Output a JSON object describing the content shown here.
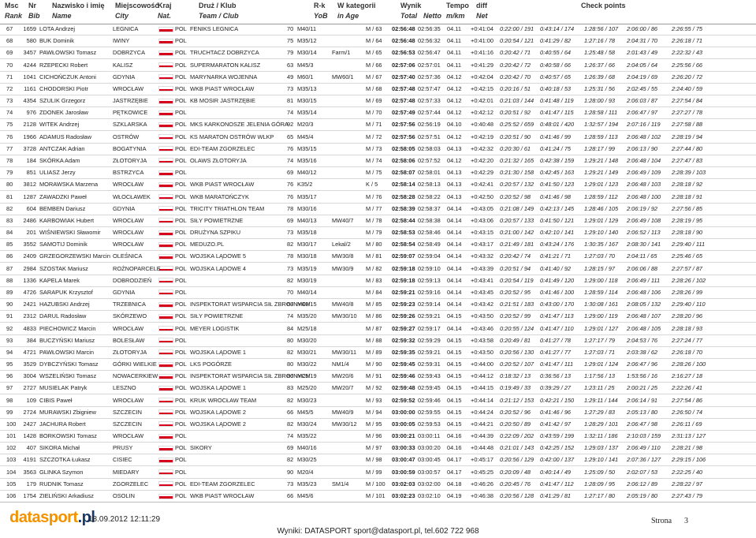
{
  "header": [
    {
      "top": "Msc",
      "bottom": "Rank"
    },
    {
      "top": "Nr",
      "bottom": "Bib"
    },
    {
      "top": "Nazwisko i imię",
      "bottom": "Name"
    },
    {
      "top": "Miejscowość",
      "bottom": "City"
    },
    {
      "top": "Kraj",
      "bottom": "Nat."
    },
    {
      "top": "Druż / Klub",
      "bottom": "Team / Club"
    },
    {
      "top": "R-k",
      "bottom": "YoB"
    },
    {
      "top": "W kategorii",
      "bottom": "in Age"
    },
    {
      "top": "Wynik",
      "bottom": "Total"
    },
    {
      "bottom": "Netto"
    },
    {
      "top": "Tempo",
      "bottom": "m/km"
    },
    {
      "top": "diff",
      "bottom": "Net"
    },
    {
      "top": "Check points"
    }
  ],
  "rows": [
    [
      "67",
      "1659",
      "LOTA Andrzej",
      "LEGNICA",
      "POL",
      "FENIKS LEGNICA",
      "70",
      "M40/11",
      null,
      "M / 63",
      "02:56:48",
      "02:56:35",
      "04.11",
      "+0:41:04",
      "0:22:00 / 191",
      "0:43:14 / 174",
      "1:28:56 / 107",
      "2:06:00 / 86",
      "2:26:55 / 75"
    ],
    [
      "68",
      "580",
      "BUK Dominik",
      "IWINY",
      "POL",
      null,
      "75",
      "M35/12",
      null,
      "M / 64",
      "02:56:48",
      "02:56:32",
      "04.11",
      "+0:41:00",
      "0:20:54 / 121",
      "0:41:29 / 82",
      "1:27:16 / 78",
      "2:04:31 / 70",
      "2:26:18 / 71"
    ],
    [
      "69",
      "3457",
      "PAWŁOWSKI Tomasz",
      "DOBRZYCA",
      "POL",
      "TRUCHTACZ DOBRZYCA",
      "79",
      "M30/14",
      "Farm/1",
      "M / 65",
      "02:56:53",
      "02:56:47",
      "04.11",
      "+0:41:16",
      "0:20:42 / 71",
      "0:40:55 / 64",
      "1:25:48 / 58",
      "2:01:43 / 49",
      "2:22:32 / 43"
    ],
    [
      "70",
      "4244",
      "RZEPECKI Robert",
      "KALISZ",
      "POL",
      "SUPERMARATON KALISZ",
      "63",
      "M45/3",
      null,
      "M / 66",
      "02:57:06",
      "02:57:01",
      "04.11",
      "+0:41:29",
      "0:20:42 / 72",
      "0:40:58 / 66",
      "1:26:37 / 66",
      "2:04:05 / 64",
      "2:25:56 / 66"
    ],
    [
      "71",
      "1041",
      "CICHOŃCZUK Antoni",
      "GDYNIA",
      "POL",
      "MARYNARKA WOJENNA",
      "49",
      "M60/1",
      "MW60/1",
      "M / 67",
      "02:57:40",
      "02:57:36",
      "04.12",
      "+0:42:04",
      "0:20:42 / 70",
      "0:40:57 / 65",
      "1:26:39 / 68",
      "2:04:19 / 69",
      "2:26:20 / 72"
    ],
    [
      "72",
      "1161",
      "CHODORSKI Piotr",
      "WROCŁAW",
      "POL",
      "WKB PIAST WROCŁAW",
      "73",
      "M35/13",
      null,
      "M / 68",
      "02:57:48",
      "02:57:47",
      "04.12",
      "+0:42:15",
      "0:20:16 / 51",
      "0:40:18 / 53",
      "1:25:31 / 56",
      "2:02:45 / 55",
      "2:24:40 / 59"
    ],
    [
      "73",
      "4354",
      "SZULIK Grzegorz",
      "JASTRZĘBIE",
      "POL",
      "KB MOSIR JASTRZĘBIE",
      "81",
      "M30/15",
      null,
      "M / 69",
      "02:57:48",
      "02:57:33",
      "04.12",
      "+0:42:01",
      "0:21:03 / 144",
      "0:41:48 / 119",
      "1:28:00 / 93",
      "2:06:03 / 87",
      "2:27:54 / 84"
    ],
    [
      "74",
      "976",
      "ZDONEK Jarosław",
      "PĘTKOWICE",
      "POL",
      null,
      "74",
      "M35/14",
      null,
      "M / 70",
      "02:57:49",
      "02:57:44",
      "04.12",
      "+0:42:12",
      "0:20:51 / 92",
      "0:41:47 / 115",
      "1:28:58 / 111",
      "2:06:47 / 97",
      "2:27:27 / 78"
    ],
    [
      "75",
      "2128",
      "WITEK Andrzej",
      "SZKLARSKA",
      "POL",
      "MKS KARKONOSZE JELENIA GÓRA",
      "92",
      "M20/3",
      null,
      "M / 71",
      "02:57:56",
      "02:56:19",
      "04.10",
      "+0:40:48",
      "0:25:52 / 659",
      "0:48:01 / 420",
      "1:32:57 / 194",
      "2:07:16 / 119",
      "2:27:58 / 88"
    ],
    [
      "76",
      "1966",
      "ADAMUS Radosław",
      "OSTRÓW",
      "POL",
      "KS MARATON OSTRÓW WLKP",
      "65",
      "M45/4",
      null,
      "M / 72",
      "02:57:56",
      "02:57:51",
      "04.12",
      "+0:42:19",
      "0:20:51 / 90",
      "0:41:46 / 99",
      "1:28:59 / 113",
      "2:06:48 / 102",
      "2:28:19 / 94"
    ],
    [
      "77",
      "3728",
      "ANTCZAK Adrian",
      "BOGATYNIA",
      "POL",
      "EDI-TEAM ZGORZELEC",
      "76",
      "M35/15",
      null,
      "M / 73",
      "02:58:05",
      "02:58:03",
      "04.13",
      "+0:42:32",
      "0:20:30 / 61",
      "0:41:24 / 75",
      "1:28:17 / 99",
      "2:06:13 / 90",
      "2:27:44 / 80"
    ],
    [
      "78",
      "184",
      "SKÓRKA Adam",
      "ZŁOTORYJA",
      "POL",
      "OLAWS ZŁOTORYJA",
      "74",
      "M35/16",
      null,
      "M / 74",
      "02:58:06",
      "02:57:52",
      "04.12",
      "+0:42:20",
      "0:21:32 / 165",
      "0:42:38 / 159",
      "1:29:21 / 148",
      "2:06:48 / 104",
      "2:27:47 / 83"
    ],
    [
      "79",
      "851",
      "ULIASZ Jerzy",
      "BSTRZYCA",
      "POL",
      null,
      "69",
      "M40/12",
      null,
      "M / 75",
      "02:58:07",
      "02:58:01",
      "04.13",
      "+0:42:29",
      "0:21:30 / 158",
      "0:42:45 / 163",
      "1:29:21 / 149",
      "2:06:49 / 109",
      "2:28:39 / 103"
    ],
    [
      "80",
      "3812",
      "MORAWSKA Marzena",
      "WROCŁAW",
      "POL",
      "WKB PIAST WROCŁAW",
      "76",
      "K35/2",
      null,
      "K / 5",
      "02:58:14",
      "02:58:13",
      "04.13",
      "+0:42:41",
      "0:20:57 / 132",
      "0:41:50 / 123",
      "1:29:01 / 123",
      "2:06:48 / 103",
      "2:28:18 / 92"
    ],
    [
      "81",
      "1287",
      "ZAWADZKI Paweł",
      "WŁOCŁAWEK",
      "POL",
      "WKB MARATOŃCZYK",
      "76",
      "M35/17",
      null,
      "M / 76",
      "02:58:28",
      "02:58:22",
      "04.13",
      "+0:42:50",
      "0:20:52 / 98",
      "0:41:46 / 98",
      "1:28:59 / 112",
      "2:06:48 / 100",
      "2:28:18 / 91"
    ],
    [
      "82",
      "604",
      "BEMBEN Dariusz",
      "GDYNIA",
      "POL",
      "TRICITY TRIATHLON TEAM",
      "78",
      "M30/16",
      null,
      "M / 77",
      "02:58:39",
      "02:58:37",
      "04.14",
      "+0:43:05",
      "0:21:08 / 149",
      "0:42:13 / 145",
      "1:28:46 / 105",
      "2:06:19 / 92",
      "2:27:56 / 85"
    ],
    [
      "83",
      "2486",
      "KARBOWIAK Hubert",
      "WROCŁAW",
      "POL",
      "SIŁY POWIETRZNE",
      "69",
      "M40/13",
      "MW40/7",
      "M / 78",
      "02:58:44",
      "02:58:38",
      "04.14",
      "+0:43:06",
      "0:20:57 / 133",
      "0:41:50 / 121",
      "1:29:01 / 129",
      "2:06:49 / 108",
      "2:28:19 / 95"
    ],
    [
      "84",
      "201",
      "WIŚNIEWSKI Sławomir",
      "WROCŁAW",
      "POL",
      "DRUŻYNA SZPIKU",
      "73",
      "M35/18",
      null,
      "M / 79",
      "02:58:53",
      "02:58:46",
      "04.14",
      "+0:43:15",
      "0:21:00 / 142",
      "0:42:10 / 141",
      "1:29:10 / 140",
      "2:06:52 / 113",
      "2:28:18 / 90"
    ],
    [
      "85",
      "3552",
      "SAMOTIJ Dominik",
      "WROCŁAW",
      "POL",
      "MEDUZO.PL",
      "82",
      "M30/17",
      "Lekal/2",
      "M / 80",
      "02:58:54",
      "02:58:49",
      "04.14",
      "+0:43:17",
      "0:21:49 / 181",
      "0:43:24 / 176",
      "1:30:35 / 167",
      "2:08:30 / 141",
      "2:29:40 / 111"
    ],
    [
      "86",
      "2409",
      "GRZEGORZEWSKI Marcin",
      "OLEŚNICA",
      "POL",
      "WOJSKA LĄDOWE 5",
      "78",
      "M30/18",
      "MW30/8",
      "M / 81",
      "02:59:07",
      "02:59:04",
      "04.14",
      "+0:43:32",
      "0:20:42 / 74",
      "0:41:21 / 71",
      "1:27:03 / 70",
      "2:04:11 / 65",
      "2:25:46 / 65"
    ],
    [
      "87",
      "2984",
      "SZOSTAK Mariusz",
      "ROŻNOPARCELE",
      "POL",
      "WOJSKA LĄDOWE 4",
      "73",
      "M35/19",
      "MW30/9",
      "M / 82",
      "02:59:18",
      "02:59:10",
      "04.14",
      "+0:43:39",
      "0:20:51 / 94",
      "0:41:40 / 92",
      "1:28:15 / 97",
      "2:06:06 / 88",
      "2:27:57 / 87"
    ],
    [
      "88",
      "1336",
      "KAPELA Marek",
      "DOBRODZIEŃ",
      "POL",
      null,
      "82",
      "M30/19",
      null,
      "M / 83",
      "02:59:18",
      "02:59:13",
      "04.14",
      "+0:43:41",
      "0:20:54 / 119",
      "0:41:49 / 120",
      "1:29:00 / 118",
      "2:06:49 / 111",
      "2:28:26 / 102"
    ],
    [
      "89",
      "4726",
      "SARAPUK Krzysztof",
      "GDYNIA",
      "POL",
      null,
      "70",
      "M40/14",
      null,
      "M / 84",
      "02:59:21",
      "02:59:16",
      "04.14",
      "+0:43:45",
      "0:20:52 / 95",
      "0:41:46 / 100",
      "1:28:59 / 114",
      "2:06:48 / 106",
      "2:28:26 / 99"
    ],
    [
      "90",
      "2421",
      "HAZUBSKI Andrzej",
      "TRZEBNICA",
      "POL",
      "INSPEKTORAT WSPARCIA SIŁ ZBROJNYCH",
      "68",
      "M40/15",
      "MW40/8",
      "M / 85",
      "02:59:23",
      "02:59:14",
      "04.14",
      "+0:43:42",
      "0:21:51 / 183",
      "0:43:00 / 170",
      "1:30:08 / 161",
      "2:08:05 / 132",
      "2:29:40 / 110"
    ],
    [
      "91",
      "2312",
      "DARUL Radosław",
      "SKÓRZEWO",
      "POL",
      "SIŁY POWIETRZNE",
      "74",
      "M35/20",
      "MW30/10",
      "M / 86",
      "02:59:26",
      "02:59:21",
      "04.15",
      "+0:43:50",
      "0:20:52 / 99",
      "0:41:47 / 113",
      "1:29:00 / 119",
      "2:06:48 / 107",
      "2:28:20 / 96"
    ],
    [
      "92",
      "4833",
      "PIECHOWICZ Marcin",
      "WROCŁAW",
      "POL",
      "MEYER LOGISTIK",
      "84",
      "M25/18",
      null,
      "M / 87",
      "02:59:27",
      "02:59:17",
      "04.14",
      "+0:43:46",
      "0:20:55 / 124",
      "0:41:47 / 110",
      "1:29:01 / 127",
      "2:06:48 / 105",
      "2:28:18 / 93"
    ],
    [
      "93",
      "384",
      "BUCZYŃSKI Mariusz",
      "BOLESŁAW",
      "POL",
      null,
      "80",
      "M30/20",
      null,
      "M / 88",
      "02:59:32",
      "02:59:29",
      "04.15",
      "+0:43:58",
      "0:20:49 / 81",
      "0:41:27 / 78",
      "1:27:17 / 79",
      "2:04:53 / 76",
      "2:27:24 / 77"
    ],
    [
      "94",
      "4721",
      "PAWŁOWSKI Marcin",
      "ZŁOTORYJA",
      "POL",
      "WOJSKA LĄDOWE 1",
      "82",
      "M30/21",
      "MW30/11",
      "M / 89",
      "02:59:35",
      "02:59:21",
      "04.15",
      "+0:43:50",
      "0:20:56 / 130",
      "0:41:27 / 77",
      "1:27:03 / 71",
      "2:03:38 / 62",
      "2:26:18 / 70"
    ],
    [
      "95",
      "3529",
      "DYBCZYŃSKI Tomasz",
      "GÓRKI WIELKIE",
      "POL",
      "LKS POGÓRZE",
      "80",
      "M30/22",
      "NM1/4",
      "M / 90",
      "02:59:45",
      "02:59:31",
      "04.15",
      "+0:44:00",
      "0:20:52 / 107",
      "0:41:47 / 111",
      "1:29:01 / 124",
      "2:06:47 / 96",
      "2:28:26 / 100"
    ],
    [
      "96",
      "3004",
      "WSZELIŃSKI Tomasz",
      "NOWACERKIEW",
      "POL",
      "INSPEKTORAT WSPARCIA SIŁ ZBROJNYCH",
      "86",
      "M25/19",
      "MW20/6",
      "M / 91",
      "02:59:46",
      "02:59:43",
      "04.15",
      "+0:44:12",
      "0:18:32 / 13",
      "0:36:56 / 13",
      "1:17:56 / 13",
      "1:53:56 / 16",
      "2:16:27 / 18"
    ],
    [
      "97",
      "2727",
      "MUSIELAK Patryk",
      "LESZNO",
      "POL",
      "WOJSKA LĄDOWE 1",
      "83",
      "M25/20",
      "MW20/7",
      "M / 92",
      "02:59:48",
      "02:59:45",
      "04.15",
      "+0:44:15",
      "0:19:49 / 33",
      "0:39:29 / 27",
      "1:23:11 / 25",
      "2:00:21 / 25",
      "2:22:26 / 41"
    ],
    [
      "98",
      "109",
      "CIBIS Paweł",
      "WROCŁAW",
      "POL",
      "KRUK WROCŁAW TEAM",
      "82",
      "M30/23",
      null,
      "M / 93",
      "02:59:52",
      "02:59:46",
      "04.15",
      "+0:44:14",
      "0:21:12 / 153",
      "0:42:21 / 150",
      "1:29:11 / 144",
      "2:06:14 / 91",
      "2:27:54 / 86"
    ],
    [
      "99",
      "2724",
      "MURAWSKI Zbigniew",
      "SZCZECIN",
      "POL",
      "WOJSKA LĄDOWE 2",
      "66",
      "M45/5",
      "MW40/9",
      "M / 94",
      "03:00:00",
      "02:59:55",
      "04.15",
      "+0:44:24",
      "0:20:52 / 96",
      "0:41:46 / 96",
      "1:27:29 / 83",
      "2:05:13 / 80",
      "2:26:50 / 74"
    ],
    [
      "100",
      "2427",
      "JACHURA Robert",
      "SZCZECIN",
      "POL",
      "WOJSKA LĄDOWE 2",
      "82",
      "M30/24",
      "MW30/12",
      "M / 95",
      "03:00:05",
      "02:59:53",
      "04.15",
      "+0:44:21",
      "0:20:50 / 89",
      "0:41:42 / 97",
      "1:28:29 / 101",
      "2:06:47 / 98",
      "2:26:11 / 69"
    ],
    [
      "101",
      "1428",
      "BORKOWSKI Tomasz",
      "WROCŁAW",
      "POL",
      null,
      "74",
      "M35/22",
      null,
      "M / 96",
      "03:00:21",
      "03:00:11",
      "04.16",
      "+0:44:39",
      "0:22:09 / 202",
      "0:43:59 / 199",
      "1:32:11 / 186",
      "2:10:03 / 159",
      "2:31:13 / 127"
    ],
    [
      "102",
      "407",
      "SIKORA Michał",
      "PRUSY",
      "POL",
      "SIKORY",
      "69",
      "M40/16",
      null,
      "M / 97",
      "03:00:33",
      "03:00:20",
      "04.16",
      "+0:44:48",
      "0:21:01 / 143",
      "0:42:25 / 152",
      "1:29:03 / 137",
      "2:06:49 / 110",
      "2:28:21 / 98"
    ],
    [
      "103",
      "4191",
      "SZCZOTKA Łukasz",
      "CISIEC",
      "POL",
      null,
      "82",
      "M30/25",
      null,
      "M / 98",
      "03:00:47",
      "03:00:45",
      "04.17",
      "+0:45:17",
      "0:20:56 / 129",
      "0:42:00 / 137",
      "1:29:10 / 141",
      "2:07:36 / 127",
      "2:29:15 / 106"
    ],
    [
      "104",
      "3563",
      "GLINKA Szymon",
      "MIEDARY",
      "POL",
      null,
      "90",
      "M20/4",
      null,
      "M / 99",
      "03:00:59",
      "03:00:57",
      "04.17",
      "+0:45:25",
      "0:20:09 / 48",
      "0:40:14 / 49",
      "1:25:09 / 50",
      "2:02:07 / 53",
      "2:22:25 / 40"
    ],
    [
      "105",
      "179",
      "RUDNIK Tomasz",
      "ZGORZELEC",
      "POL",
      "EDI-TEAM ZGORZELEC",
      "73",
      "M35/23",
      "SM1/4",
      "M / 100",
      "03:02:03",
      "03:02:00",
      "04.18",
      "+0:46:26",
      "0:20:45 / 76",
      "0:41:47 / 112",
      "1:28:09 / 95",
      "2:06:12 / 89",
      "2:28:22 / 97"
    ],
    [
      "106",
      "1754",
      "ZIELIŃSKI Arkadiusz",
      "OSOLIN",
      "POL",
      "WKB PIAST WROCŁAW",
      "66",
      "M45/6",
      null,
      "M / 101",
      "03:02:23",
      "03:02:10",
      "04.19",
      "+0:46:38",
      "0:20:56 / 128",
      "0:41:29 / 81",
      "1:27:17 / 80",
      "2:05:19 / 80",
      "2:27:43 / 79"
    ]
  ],
  "footer": {
    "logo_main": "datasport",
    "logo_suffix": ".pl",
    "timestamp": "18.09.2012 12:11:29",
    "contact": "Wyniki: DATASPORT sport@datasport.pl, tel.602 722 968",
    "page_label": "Strona",
    "page_number": "3"
  }
}
